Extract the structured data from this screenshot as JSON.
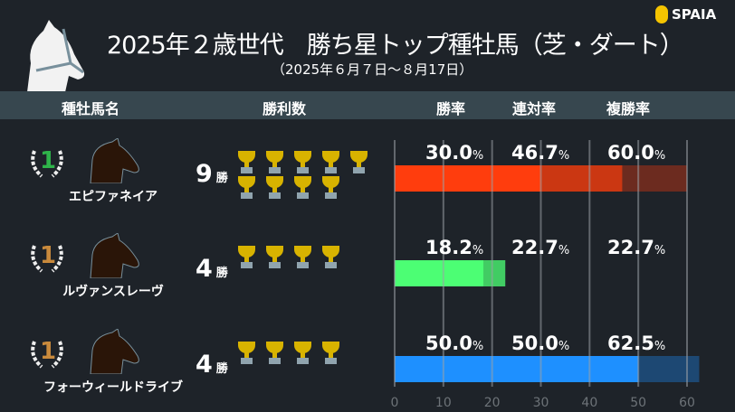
{
  "header": {
    "title": "2025年２歳世代　勝ち星トップ種牡馬（芝・ダート）",
    "subtitle": "（2025年６月７日～８月17日）",
    "logo": "SPAIA"
  },
  "columns": {
    "sire": "種牡馬名",
    "wins": "勝利数",
    "win_rate": "勝率",
    "top2_rate": "連対率",
    "top3_rate": "複勝率"
  },
  "rows": [
    {
      "rank": "1",
      "name": "エピファネイア",
      "wins": "9",
      "wins_unit": "勝",
      "win_rate": "30.0",
      "top2_rate": "46.7",
      "top3_rate": "60.0",
      "pct": "%",
      "color": "#ff3d0d",
      "rank_color": "#2fb44a"
    },
    {
      "rank": "1",
      "name": "ルヴァンスレーヴ",
      "wins": "4",
      "wins_unit": "勝",
      "win_rate": "18.2",
      "top2_rate": "22.7",
      "top3_rate": "22.7",
      "pct": "%",
      "color": "#4cfe74",
      "rank_color": "#c98a3c"
    },
    {
      "rank": "1",
      "name": "フォーウィールドライブ",
      "wins": "4",
      "wins_unit": "勝",
      "win_rate": "50.0",
      "top2_rate": "50.0",
      "top3_rate": "62.5",
      "pct": "%",
      "color": "#1e90ff",
      "rank_color": "#c98a3c"
    }
  ],
  "chart_data": {
    "type": "bar",
    "stacked_overlay": true,
    "categories": [
      "エピファネイア",
      "ルヴァンスレーヴ",
      "フォーウィールドライブ"
    ],
    "series": [
      {
        "name": "勝率",
        "values": [
          30.0,
          18.2,
          50.0
        ]
      },
      {
        "name": "連対率",
        "values": [
          46.7,
          22.7,
          50.0
        ]
      },
      {
        "name": "複勝率",
        "values": [
          60.0,
          22.7,
          62.5
        ]
      }
    ],
    "wins": [
      9,
      4,
      4
    ],
    "xlim": [
      0,
      60
    ],
    "xticks": [
      "0",
      "10",
      "20",
      "30",
      "40",
      "50",
      "60"
    ],
    "grid": true
  }
}
